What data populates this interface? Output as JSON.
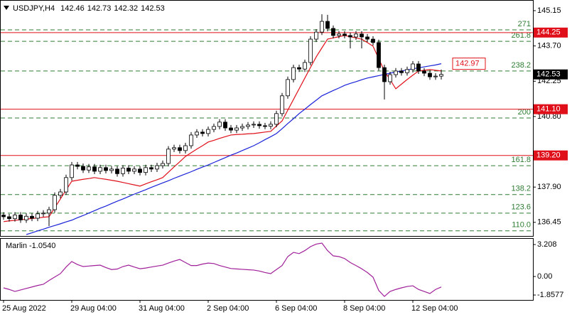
{
  "chart_data": [
    {
      "type": "candlestick",
      "symbol": "USDJPY,H4",
      "categories": [
        "25 Aug 2022",
        null,
        null,
        null,
        null,
        null,
        null,
        null,
        null,
        null,
        null,
        null,
        "29 Aug 04:00",
        null,
        null,
        null,
        null,
        null,
        null,
        null,
        null,
        null,
        null,
        null,
        "31 Aug 04:00",
        null,
        null,
        null,
        null,
        null,
        null,
        null,
        null,
        null,
        null,
        null,
        "2 Sep 04:00",
        null,
        null,
        null,
        null,
        null,
        null,
        null,
        null,
        null,
        null,
        null,
        "6 Sep 04:00",
        null,
        null,
        null,
        null,
        null,
        null,
        null,
        null,
        null,
        null,
        null,
        "8 Sep 04:00",
        null,
        null,
        null,
        null,
        null,
        null,
        null,
        null,
        null,
        null,
        null,
        "12 Sep 04:00",
        null,
        null,
        null,
        null,
        null
      ],
      "open": [
        136.75,
        136.68,
        136.6,
        136.75,
        136.55,
        136.7,
        136.62,
        136.8,
        136.83,
        136.97,
        137.56,
        137.7,
        138.29,
        138.81,
        138.75,
        138.6,
        138.73,
        138.55,
        138.7,
        138.58,
        138.64,
        138.45,
        138.68,
        138.55,
        138.64,
        138.5,
        138.7,
        138.64,
        138.78,
        138.87,
        139.46,
        139.52,
        139.4,
        139.6,
        140.04,
        140.16,
        140.1,
        140.27,
        140.39,
        140.57,
        140.33,
        140.24,
        140.33,
        140.39,
        140.45,
        140.48,
        140.42,
        140.4,
        140.48,
        140.92,
        141.65,
        142.32,
        142.81,
        142.75,
        143.02,
        143.98,
        144.27,
        144.71,
        144.42,
        144.13,
        144.19,
        144.13,
        144.07,
        144.19,
        144.07,
        143.98,
        143.84,
        142.81,
        142.23,
        142.52,
        142.67,
        142.6,
        142.73,
        142.96,
        142.67,
        142.58,
        142.43,
        142.46
      ],
      "high": [
        136.87,
        136.8,
        136.87,
        136.87,
        136.82,
        136.82,
        136.92,
        136.95,
        137.09,
        137.68,
        137.82,
        138.41,
        138.93,
        138.93,
        138.87,
        138.85,
        138.85,
        138.82,
        138.82,
        138.76,
        138.76,
        138.8,
        138.8,
        138.76,
        138.76,
        138.82,
        138.82,
        138.9,
        138.99,
        139.58,
        139.64,
        139.64,
        139.72,
        140.16,
        140.28,
        140.28,
        140.39,
        140.51,
        140.69,
        140.69,
        140.45,
        140.45,
        140.51,
        140.57,
        140.6,
        140.6,
        140.54,
        140.6,
        141.04,
        141.77,
        142.44,
        142.93,
        142.93,
        143.14,
        144.1,
        144.39,
        145.0,
        144.98,
        144.54,
        144.31,
        144.31,
        144.25,
        144.31,
        144.31,
        144.19,
        144.1,
        143.96,
        142.93,
        142.64,
        142.79,
        142.79,
        142.85,
        143.08,
        143.08,
        142.79,
        142.7,
        142.58,
        142.73
      ],
      "low": [
        136.56,
        136.48,
        136.48,
        136.43,
        136.43,
        136.5,
        136.5,
        136.68,
        136.3,
        136.85,
        137.44,
        137.58,
        138.17,
        138.63,
        138.48,
        138.48,
        138.43,
        138.43,
        138.46,
        138.46,
        138.33,
        138.33,
        138.43,
        138.43,
        138.38,
        138.38,
        138.52,
        138.52,
        138.66,
        138.75,
        139.34,
        139.28,
        139.28,
        139.48,
        139.92,
        139.98,
        139.98,
        140.15,
        140.27,
        140.21,
        140.12,
        140.12,
        140.21,
        140.27,
        140.33,
        140.3,
        140.28,
        140.28,
        140.36,
        140.8,
        141.53,
        142.2,
        142.63,
        142.63,
        142.9,
        143.86,
        144.15,
        144.3,
        144.01,
        144.01,
        144.01,
        143.6,
        143.95,
        143.6,
        143.86,
        143.72,
        142.69,
        141.5,
        142.11,
        142.4,
        142.48,
        142.48,
        142.61,
        142.55,
        142.46,
        142.31,
        142.31,
        142.32
      ],
      "close": [
        136.68,
        136.6,
        136.75,
        136.55,
        136.7,
        136.62,
        136.8,
        136.83,
        136.97,
        137.56,
        137.7,
        138.29,
        138.81,
        138.75,
        138.6,
        138.73,
        138.55,
        138.7,
        138.58,
        138.64,
        138.45,
        138.68,
        138.55,
        138.64,
        138.5,
        138.7,
        138.64,
        138.78,
        138.87,
        139.46,
        139.52,
        139.4,
        139.6,
        140.04,
        140.16,
        140.1,
        140.27,
        140.39,
        140.57,
        140.33,
        140.24,
        140.33,
        140.39,
        140.45,
        140.48,
        140.42,
        140.4,
        140.48,
        140.92,
        141.65,
        142.32,
        142.81,
        142.75,
        143.02,
        143.98,
        144.27,
        144.71,
        144.42,
        144.13,
        144.19,
        144.13,
        144.07,
        144.19,
        144.07,
        143.98,
        143.84,
        142.81,
        142.23,
        142.52,
        142.67,
        142.6,
        142.73,
        142.96,
        142.67,
        142.58,
        142.43,
        142.46,
        142.53
      ],
      "up_color": "#ffffff",
      "down_color": "#000000",
      "series": [
        {
          "color": "#e0101a",
          "values": [
            136.48,
            136.51,
            136.53,
            136.56,
            136.58,
            136.61,
            136.63,
            136.66,
            136.68,
            137.05,
            137.41,
            137.78,
            138.14,
            138.18,
            138.22,
            138.25,
            138.29,
            138.25,
            138.22,
            138.18,
            138.14,
            138.09,
            138.04,
            137.99,
            137.94,
            138.03,
            138.12,
            138.2,
            138.29,
            138.51,
            138.73,
            138.94,
            139.16,
            139.31,
            139.46,
            139.6,
            139.75,
            139.82,
            139.9,
            139.97,
            140.04,
            140.06,
            140.07,
            140.09,
            140.1,
            140.13,
            140.16,
            140.19,
            140.41,
            140.62,
            141.06,
            141.5,
            141.94,
            142.38,
            142.82,
            143.25,
            143.62,
            143.98,
            144.03,
            144.08,
            144.13,
            144.08,
            144.03,
            143.98,
            143.84,
            143.69,
            143.18,
            142.67,
            142.31,
            141.94,
            142.13,
            142.32,
            142.5,
            142.67,
            142.7,
            142.73,
            142.7,
            142.67
          ]
        },
        {
          "color": "#1a22d8",
          "values": [
            null,
            null,
            null,
            null,
            135.95,
            136.02,
            136.1,
            136.17,
            136.25,
            136.32,
            136.39,
            136.47,
            136.54,
            136.64,
            136.73,
            136.83,
            136.93,
            137.03,
            137.12,
            137.22,
            137.32,
            137.41,
            137.51,
            137.61,
            137.7,
            137.79,
            137.89,
            137.98,
            138.07,
            138.16,
            138.26,
            138.35,
            138.44,
            138.53,
            138.63,
            138.72,
            138.81,
            138.91,
            139.01,
            139.11,
            139.21,
            139.3,
            139.4,
            139.5,
            139.6,
            139.72,
            139.85,
            139.97,
            140.1,
            140.3,
            140.51,
            140.71,
            140.92,
            141.1,
            141.29,
            141.47,
            141.65,
            141.76,
            141.87,
            141.97,
            142.08,
            142.16,
            142.23,
            142.31,
            142.38,
            142.43,
            142.48,
            142.53,
            142.58,
            142.63,
            142.67,
            142.72,
            142.76,
            142.8,
            142.84,
            142.88,
            142.92,
            142.97
          ]
        }
      ],
      "hlines": {
        "color": "#e0101a",
        "values": [
          144.25,
          141.1,
          139.2
        ],
        "value_labels": [
          "144.25",
          "141.10",
          "139.20"
        ]
      },
      "fib_levels": {
        "color": "#2e7d32",
        "labels": [
          "271",
          "261.8",
          "238.2",
          "200",
          "161.8",
          "138.2",
          "123.6",
          "110.0"
        ],
        "values": [
          144.36,
          143.89,
          142.67,
          140.74,
          138.78,
          137.59,
          136.83,
          136.1
        ]
      },
      "ylim": [
        135.89,
        145.53
      ],
      "yticks": [
        145.15,
        {
          "value": 143.7,
          "label": "143.70"
        },
        142.25,
        {
          "value": 140.8,
          "label": "140.80"
        },
        {
          "value": 137.9,
          "label": "137.90"
        },
        136.45
      ]
    },
    {
      "type": "line",
      "title": "Marlin -1.0540",
      "series": [
        {
          "color": "#a0209a",
          "values": [
            -1.14,
            -1.3,
            -1.5,
            -1.35,
            -1.2,
            -1.05,
            -0.9,
            -0.78,
            -0.4,
            -0.05,
            0.29,
            0.95,
            1.5,
            1.2,
            1.0,
            1.05,
            1.1,
            1.14,
            0.9,
            0.7,
            0.75,
            1.0,
            1.14,
            0.95,
            0.78,
            0.85,
            0.95,
            1.05,
            1.14,
            1.35,
            1.55,
            1.71,
            1.4,
            1.1,
            1.1,
            1.25,
            1.35,
            1.3,
            1.1,
            0.95,
            0.8,
            0.76,
            0.72,
            0.68,
            0.65,
            0.55,
            0.4,
            0.29,
            0.7,
            1.1,
            2.0,
            2.42,
            2.3,
            2.6,
            3.0,
            3.25,
            3.35,
            2.6,
            2.07,
            2.0,
            1.8,
            1.4,
            1.1,
            0.78,
            0.4,
            -0.07,
            -1.4,
            -2.0,
            -1.5,
            -1.3,
            -1.14,
            -1.0,
            -0.93,
            -1.3,
            -1.5,
            -1.71,
            -1.3,
            -1.054
          ]
        }
      ],
      "ylim": [
        -2.21,
        3.64
      ],
      "yticks": [
        3.208,
        {
          "value": 0,
          "label": "0.00"
        },
        -1.8577
      ]
    }
  ]
}
